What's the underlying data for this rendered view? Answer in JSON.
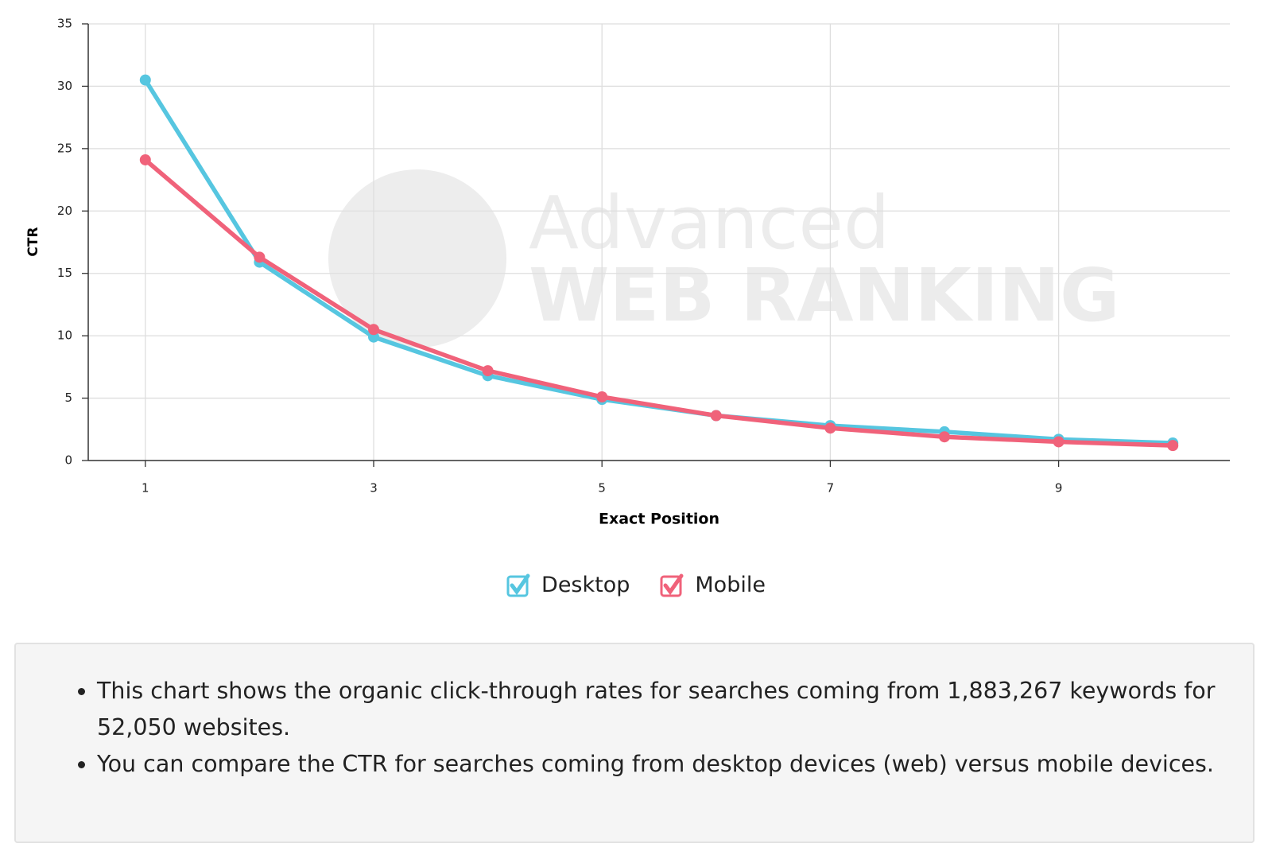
{
  "chart_data": {
    "type": "line",
    "xlabel": "Exact Position",
    "ylabel": "CTR",
    "watermark": [
      "Advanced",
      "WEB RANKING"
    ],
    "x": [
      1,
      2,
      3,
      4,
      5,
      6,
      7,
      8,
      9,
      10
    ],
    "series": [
      {
        "name": "Desktop",
        "color": "#56c6e0",
        "values": [
          30.5,
          15.9,
          9.9,
          6.8,
          4.9,
          3.6,
          2.8,
          2.3,
          1.7,
          1.4
        ]
      },
      {
        "name": "Mobile",
        "color": "#f0627a",
        "values": [
          24.1,
          16.3,
          10.5,
          7.2,
          5.1,
          3.6,
          2.6,
          1.9,
          1.5,
          1.2
        ]
      }
    ],
    "xlim": [
      0.5,
      10.5
    ],
    "xticks": [
      1,
      3,
      5,
      7,
      9
    ],
    "ylim": [
      0,
      35
    ],
    "yticks": [
      0,
      5,
      10,
      15,
      20,
      25,
      30,
      35
    ],
    "grid": true
  },
  "notes": [
    "This chart shows the organic click-through rates for searches coming from 1,883,267 keywords for 52,050 websites.",
    "You can compare the CTR for searches coming from desktop devices (web) versus mobile devices."
  ]
}
